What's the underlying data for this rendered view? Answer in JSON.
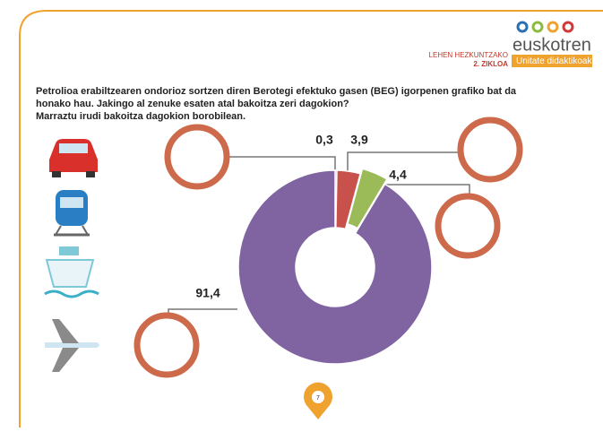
{
  "header": {
    "level": "LEHEN HEZKUNTZAKO",
    "cycle": "2. ZIKLOA",
    "brand": "euskotren",
    "unit": "Unitate didaktikoak"
  },
  "question": [
    "Petrolioa erabiltzearen ondorioz sortzen diren Berotegi efektuko gasen (BEG) igorpenen grafiko bat da",
    "honako hau. Jakingo al zenuke esaten atal bakoitza zeri dagokion?",
    "Marraztu irudi bakoitza dagokion borobilean."
  ],
  "page_number": "7",
  "chart_data": {
    "type": "donut",
    "values": [
      0.3,
      3.9,
      4.4,
      91.4
    ],
    "value_labels": [
      "0,3",
      "3,9",
      "4,4",
      "91,4"
    ],
    "colors": [
      "#5a7fb8",
      "#c9514c",
      "#9bbb59",
      "#8064a2"
    ]
  }
}
